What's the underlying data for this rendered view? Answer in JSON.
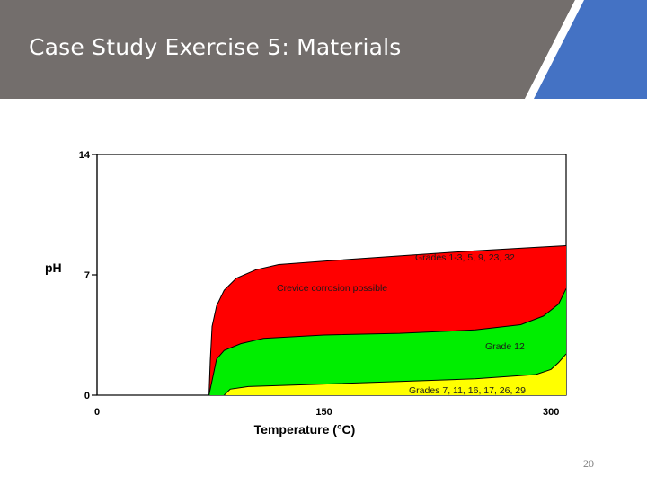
{
  "slide": {
    "title": "Case Study Exercise 5: Materials",
    "page_number": "20",
    "colors": {
      "header_bg": "#736e6c",
      "accent": "#4472c4",
      "divider": "#ffffff"
    }
  },
  "chart_data": {
    "type": "area",
    "title": "",
    "xlabel": "Temperature (°C)",
    "ylabel": "pH",
    "xlim": [
      0,
      310
    ],
    "ylim": [
      0,
      14
    ],
    "x_ticks": [
      {
        "value": 0,
        "label": "0"
      },
      {
        "value": 150,
        "label": "150"
      },
      {
        "value": 300,
        "label": "300"
      }
    ],
    "y_ticks": [
      {
        "value": 0,
        "label": "0"
      },
      {
        "value": 7,
        "label": "7"
      },
      {
        "value": 14,
        "label": "14"
      }
    ],
    "grid": false,
    "regions": [
      {
        "name": "Grades 1-3, 5, 9, 23, 32",
        "annotation": "Crevice corrosion possible",
        "color": "#ff0000",
        "upper": [
          [
            74,
            0
          ],
          [
            74.8,
            2
          ],
          [
            76,
            4
          ],
          [
            79,
            5.2
          ],
          [
            84,
            6.1
          ],
          [
            92,
            6.8
          ],
          [
            105,
            7.3
          ],
          [
            120,
            7.6
          ],
          [
            150,
            7.8
          ],
          [
            200,
            8.1
          ],
          [
            250,
            8.4
          ],
          [
            290,
            8.6
          ],
          [
            310,
            8.7
          ]
        ],
        "lower": [
          [
            74,
            0
          ],
          [
            79,
            2.1
          ],
          [
            84,
            2.6
          ],
          [
            95,
            3.0
          ],
          [
            110,
            3.3
          ],
          [
            150,
            3.5
          ],
          [
            200,
            3.6
          ],
          [
            250,
            3.8
          ],
          [
            280,
            4.1
          ],
          [
            295,
            4.6
          ],
          [
            305,
            5.3
          ],
          [
            310,
            6.2
          ]
        ]
      },
      {
        "name": "Grade 12",
        "color": "#00ee00",
        "upper": [
          [
            74,
            0
          ],
          [
            79,
            2.1
          ],
          [
            84,
            2.6
          ],
          [
            95,
            3.0
          ],
          [
            110,
            3.3
          ],
          [
            150,
            3.5
          ],
          [
            200,
            3.6
          ],
          [
            250,
            3.8
          ],
          [
            280,
            4.1
          ],
          [
            295,
            4.6
          ],
          [
            305,
            5.3
          ],
          [
            310,
            6.2
          ]
        ],
        "lower": [
          [
            84,
            0
          ],
          [
            88,
            0.35
          ],
          [
            100,
            0.5
          ],
          [
            150,
            0.65
          ],
          [
            200,
            0.8
          ],
          [
            250,
            0.95
          ],
          [
            290,
            1.2
          ],
          [
            300,
            1.5
          ],
          [
            305,
            1.9
          ],
          [
            310,
            2.4
          ]
        ]
      },
      {
        "name": "Grades 7, 11, 16, 17, 26, 29",
        "color": "#ffff00",
        "upper": [
          [
            84,
            0
          ],
          [
            88,
            0.35
          ],
          [
            100,
            0.5
          ],
          [
            150,
            0.65
          ],
          [
            200,
            0.8
          ],
          [
            250,
            0.95
          ],
          [
            290,
            1.2
          ],
          [
            300,
            1.5
          ],
          [
            305,
            1.9
          ],
          [
            310,
            2.4
          ]
        ],
        "lower": [
          [
            84,
            0
          ],
          [
            310,
            0
          ]
        ]
      }
    ]
  }
}
